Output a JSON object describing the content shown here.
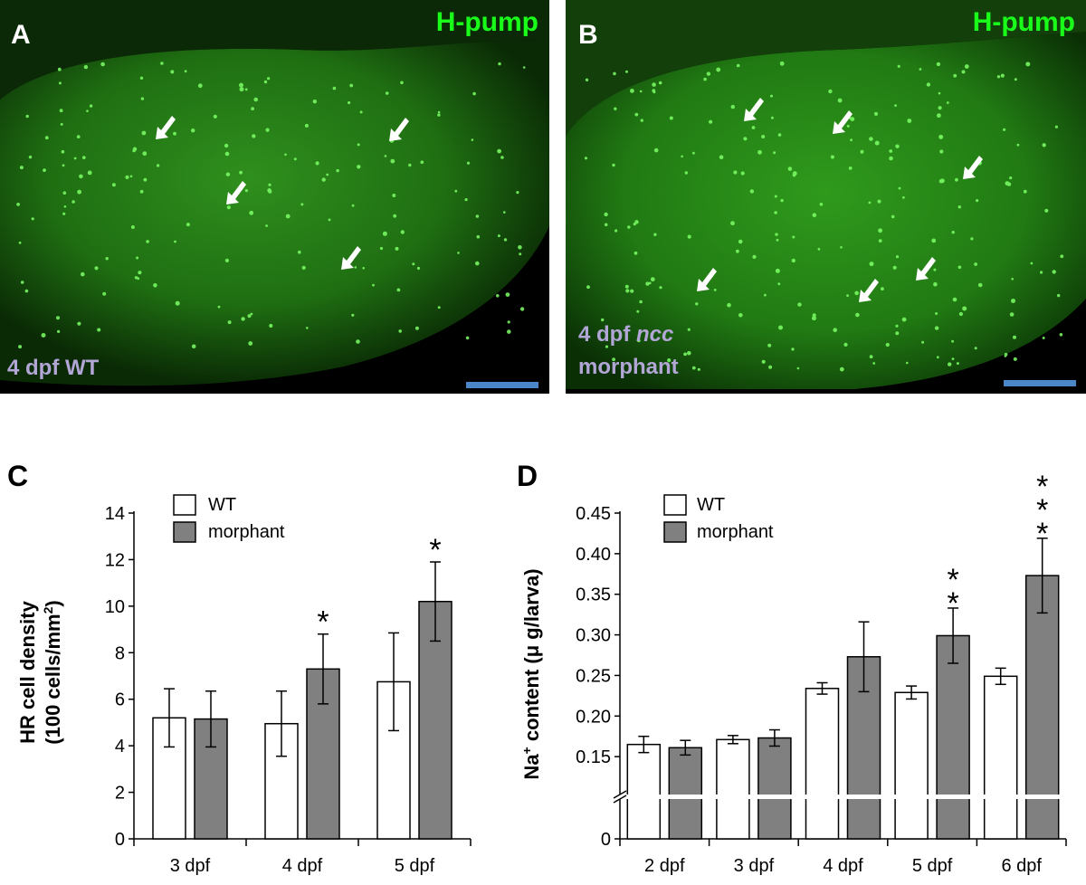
{
  "panel_a": {
    "letter": "A",
    "title": "H-pump",
    "caption": "4 dpf WT",
    "title_color": "#1aff1a",
    "caption_color": "#b2a6d6",
    "scalebar_color": "#4a86c8"
  },
  "panel_b": {
    "letter": "B",
    "title": "H-pump",
    "caption_line1_prefix": "4 dpf ",
    "caption_line1_italic": "ncc",
    "caption_line2": "morphant",
    "title_color": "#1aff1a",
    "caption_color": "#b2a6d6",
    "scalebar_color": "#4a86c8"
  },
  "chart_data": [
    {
      "panel": "C",
      "type": "bar",
      "categories": [
        "3 dpf",
        "4 dpf",
        "5 dpf"
      ],
      "series": [
        {
          "name": "WT",
          "values": [
            5.2,
            4.95,
            6.75
          ],
          "errors": [
            1.25,
            1.4,
            2.1
          ],
          "color": "#ffffff"
        },
        {
          "name": "morphant",
          "values": [
            5.15,
            7.3,
            10.2
          ],
          "errors": [
            1.2,
            1.5,
            1.7
          ],
          "color": "#808080"
        }
      ],
      "significance": [
        {
          "category": "4 dpf",
          "series": "morphant",
          "label": "*"
        },
        {
          "category": "5 dpf",
          "series": "morphant",
          "label": "*"
        }
      ],
      "ylabel_line1": "HR cell density",
      "ylabel_line2": "(100 cells/mm",
      "ylabel_sup": "2",
      "ylabel_line2_end": ")",
      "ylim": [
        0,
        14
      ],
      "yticks": [
        "0",
        "2",
        "4",
        "6",
        "8",
        "10",
        "12",
        "14"
      ],
      "legend_position": "top-left"
    },
    {
      "panel": "D",
      "type": "bar",
      "categories": [
        "2 dpf",
        "3 dpf",
        "4 dpf",
        "5 dpf",
        "6 dpf"
      ],
      "series": [
        {
          "name": "WT",
          "values": [
            0.165,
            0.171,
            0.234,
            0.229,
            0.249
          ],
          "errors": [
            0.01,
            0.005,
            0.007,
            0.008,
            0.01
          ],
          "color": "#ffffff"
        },
        {
          "name": "morphant",
          "values": [
            0.161,
            0.173,
            0.273,
            0.299,
            0.373
          ],
          "errors": [
            0.009,
            0.01,
            0.043,
            0.034,
            0.046
          ],
          "color": "#808080"
        }
      ],
      "significance": [
        {
          "category": "5 dpf",
          "series": "morphant",
          "label": "**"
        },
        {
          "category": "6 dpf",
          "series": "morphant",
          "label": "***"
        }
      ],
      "ylabel_prefix": "Na",
      "ylabel_sup": "+",
      "ylabel_suffix": " content (μ g/larva)",
      "ylim": [
        0.1,
        0.45
      ],
      "axis_break": true,
      "yticks": [
        "0.15",
        "0.20",
        "0.25",
        "0.30",
        "0.35",
        "0.40",
        "0.45"
      ],
      "ytick_zero": "0",
      "legend_position": "top-left"
    }
  ]
}
